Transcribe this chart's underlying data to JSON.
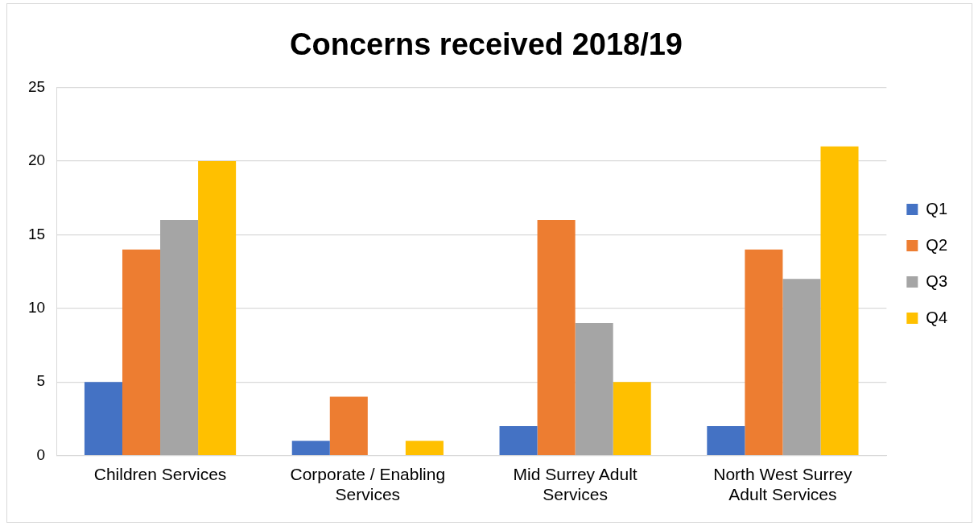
{
  "chart_data": {
    "type": "bar",
    "title": "Concerns received 2018/19",
    "categories": [
      "Children Services",
      "Corporate / Enabling Services",
      "Mid Surrey Adult Services",
      "North West Surrey Adult Services"
    ],
    "series": [
      {
        "name": "Q1",
        "color": "#4472c4",
        "values": [
          5,
          1,
          2,
          2
        ]
      },
      {
        "name": "Q2",
        "color": "#ed7d31",
        "values": [
          14,
          4,
          16,
          14
        ]
      },
      {
        "name": "Q3",
        "color": "#a5a5a5",
        "values": [
          16,
          0,
          9,
          12
        ]
      },
      {
        "name": "Q4",
        "color": "#ffc000",
        "values": [
          20,
          1,
          5,
          21
        ]
      }
    ],
    "ylim": [
      0,
      25
    ],
    "yticks": [
      0,
      5,
      10,
      15,
      20,
      25
    ],
    "grid": "y",
    "legend": "right"
  }
}
